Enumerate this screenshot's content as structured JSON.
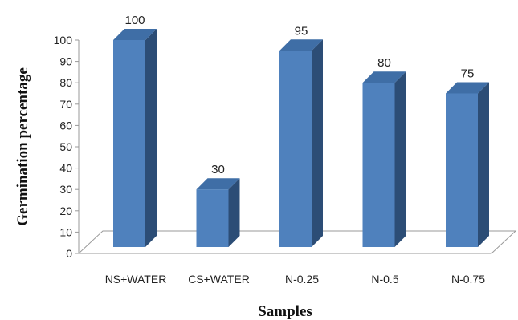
{
  "chart_data": {
    "type": "bar",
    "categories": [
      "NS+WATER",
      "CS+WATER",
      "N-0.25",
      "N-0.5",
      "N-0.75"
    ],
    "values": [
      100,
      30,
      95,
      80,
      75
    ],
    "data_labels": [
      "100",
      "30",
      "95",
      "80",
      "75"
    ],
    "xlabel": "Samples",
    "ylabel": "Germination percentage",
    "ylim": [
      0,
      100
    ],
    "yticks": [
      0,
      10,
      20,
      30,
      40,
      50,
      60,
      70,
      80,
      90,
      100
    ],
    "grid": false,
    "legend": "none",
    "style": "3d",
    "colors": {
      "bar_front": "#4f81bd",
      "bar_side": "#2c4d76",
      "bar_top": "#3f6ea6",
      "floor": "#999999"
    }
  }
}
